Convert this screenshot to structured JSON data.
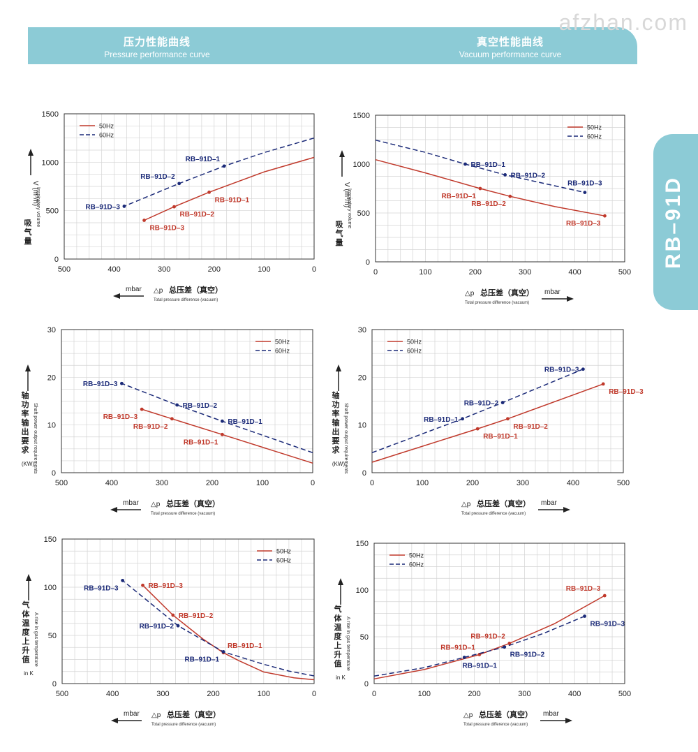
{
  "header": {
    "left": {
      "cn": "压力性能曲线",
      "en": "Pressure performance curve"
    },
    "right": {
      "cn": "真空性能曲线",
      "en": "Vacuum performance curve"
    }
  },
  "watermark": "afzhan.com",
  "side_label": "RB–91D",
  "colors": {
    "c50": "#c0392b",
    "c60": "#1b2a78",
    "grid": "#d4d4d4",
    "accent": "#8ccbd6"
  },
  "xlabel": {
    "mbar": "mbar",
    "dp": "△p",
    "cn": "总压差（真空）",
    "en": "Total pressure difference (vacuum)"
  },
  "ylabels": {
    "volume": {
      "cn": "吸气量",
      "en": "Inspiratory volume",
      "unit": "V (m³/h)"
    },
    "power": {
      "cn": "轴功率输出要求",
      "en": "Shaft power output requirements",
      "unit": "(KW)"
    },
    "temp": {
      "cn": "气体温度上升值",
      "en": "A rise in gas temperature",
      "unit": "in K"
    }
  },
  "chart_data": [
    {
      "id": "pressure-volume",
      "type": "line",
      "title": "Pressure performance curve",
      "xlim": [
        0,
        500
      ],
      "x_reversed": true,
      "xticks": [
        500,
        400,
        300,
        200,
        100,
        0
      ],
      "ylim": [
        0,
        1500
      ],
      "yticks": [
        0,
        500,
        1000,
        1500
      ],
      "legend": {
        "position": "top-left",
        "entries": [
          "50Hz",
          "60Hz"
        ]
      },
      "series": [
        {
          "name": "50Hz",
          "x": [
            0,
            100,
            210,
            280,
            340
          ],
          "y": [
            1050,
            900,
            690,
            540,
            400
          ],
          "markers": [
            {
              "x": 210,
              "y": 690,
              "label": "RB–91D–1",
              "anchor": "below-right"
            },
            {
              "x": 280,
              "y": 540,
              "label": "RB–91D–2",
              "anchor": "below-right"
            },
            {
              "x": 340,
              "y": 400,
              "label": "RB–91D–3",
              "anchor": "below-right"
            }
          ]
        },
        {
          "name": "60Hz",
          "x": [
            0,
            100,
            180,
            270,
            380
          ],
          "y": [
            1250,
            1100,
            960,
            780,
            545
          ],
          "markers": [
            {
              "x": 180,
              "y": 960,
              "label": "RB–91D–1",
              "anchor": "above-left"
            },
            {
              "x": 270,
              "y": 780,
              "label": "RB–91D–2",
              "anchor": "above-left"
            },
            {
              "x": 380,
              "y": 545,
              "label": "RB–91D–3",
              "anchor": "left"
            }
          ]
        }
      ]
    },
    {
      "id": "vacuum-volume",
      "type": "line",
      "title": "Vacuum performance curve",
      "xlim": [
        0,
        500
      ],
      "x_reversed": false,
      "xticks": [
        0,
        100,
        200,
        300,
        400,
        500
      ],
      "ylim": [
        0,
        1500
      ],
      "yticks": [
        0,
        500,
        1000,
        1500
      ],
      "legend": {
        "position": "top-right",
        "entries": [
          "50Hz",
          "60Hz"
        ]
      },
      "series": [
        {
          "name": "50Hz",
          "x": [
            0,
            100,
            210,
            270,
            360,
            460
          ],
          "y": [
            1045,
            910,
            750,
            670,
            565,
            470
          ],
          "markers": [
            {
              "x": 210,
              "y": 750,
              "label": "RB–91D–1",
              "anchor": "below-left"
            },
            {
              "x": 270,
              "y": 670,
              "label": "RB–91D–2",
              "anchor": "below-left"
            },
            {
              "x": 460,
              "y": 470,
              "label": "RB–91D–3",
              "anchor": "below-left"
            }
          ]
        },
        {
          "name": "60Hz",
          "x": [
            0,
            100,
            180,
            260,
            420
          ],
          "y": [
            1245,
            1120,
            1000,
            890,
            710
          ],
          "markers": [
            {
              "x": 180,
              "y": 1000,
              "label": "RB–91D–1",
              "anchor": "right"
            },
            {
              "x": 260,
              "y": 890,
              "label": "RB–91D–2",
              "anchor": "right"
            },
            {
              "x": 420,
              "y": 710,
              "label": "RB–91D–3",
              "anchor": "above"
            }
          ]
        }
      ]
    },
    {
      "id": "pressure-power",
      "type": "line",
      "title": "Pressure performance curve",
      "xlim": [
        0,
        500
      ],
      "x_reversed": true,
      "xticks": [
        500,
        400,
        300,
        200,
        100,
        0
      ],
      "ylim": [
        0,
        30
      ],
      "yticks": [
        0,
        10,
        20,
        30
      ],
      "legend": {
        "position": "top-right",
        "entries": [
          "50Hz",
          "60Hz"
        ]
      },
      "series": [
        {
          "name": "50Hz",
          "x": [
            0,
            180,
            280,
            340
          ],
          "y": [
            2.0,
            8.0,
            11.3,
            13.3
          ],
          "markers": [
            {
              "x": 180,
              "y": 8.0,
              "label": "RB–91D–1",
              "anchor": "below-left"
            },
            {
              "x": 280,
              "y": 11.3,
              "label": "RB–91D–2",
              "anchor": "below-left"
            },
            {
              "x": 340,
              "y": 13.3,
              "label": "RB–91D–3",
              "anchor": "below-left"
            }
          ]
        },
        {
          "name": "60Hz",
          "x": [
            0,
            180,
            270,
            380
          ],
          "y": [
            4.2,
            10.8,
            14.2,
            18.7
          ],
          "markers": [
            {
              "x": 180,
              "y": 10.8,
              "label": "RB–91D–1",
              "anchor": "right"
            },
            {
              "x": 270,
              "y": 14.2,
              "label": "RB–91D–2",
              "anchor": "right"
            },
            {
              "x": 380,
              "y": 18.7,
              "label": "RB–91D–3",
              "anchor": "left"
            }
          ]
        }
      ]
    },
    {
      "id": "vacuum-power",
      "type": "line",
      "title": "Vacuum performance curve",
      "xlim": [
        0,
        500
      ],
      "x_reversed": false,
      "xticks": [
        0,
        100,
        200,
        300,
        400,
        500
      ],
      "ylim": [
        0,
        30
      ],
      "yticks": [
        0,
        10,
        20,
        30
      ],
      "legend": {
        "position": "top-left",
        "entries": [
          "50Hz",
          "60Hz"
        ]
      },
      "series": [
        {
          "name": "50Hz",
          "x": [
            0,
            210,
            270,
            460
          ],
          "y": [
            2.2,
            9.2,
            11.3,
            18.6
          ],
          "markers": [
            {
              "x": 210,
              "y": 9.2,
              "label": "RB–91D–1",
              "anchor": "below-right"
            },
            {
              "x": 270,
              "y": 11.3,
              "label": "RB–91D–2",
              "anchor": "below-right"
            },
            {
              "x": 460,
              "y": 18.6,
              "label": "RB–91D–3",
              "anchor": "below-right"
            }
          ]
        },
        {
          "name": "60Hz",
          "x": [
            0,
            180,
            260,
            420
          ],
          "y": [
            4.2,
            11.3,
            14.7,
            21.7
          ],
          "markers": [
            {
              "x": 180,
              "y": 11.3,
              "label": "RB–91D–1",
              "anchor": "left"
            },
            {
              "x": 260,
              "y": 14.7,
              "label": "RB–91D–2",
              "anchor": "left"
            },
            {
              "x": 420,
              "y": 21.7,
              "label": "RB–91D–3",
              "anchor": "left"
            }
          ]
        }
      ]
    },
    {
      "id": "pressure-temp",
      "type": "line",
      "title": "Pressure performance curve",
      "xlim": [
        0,
        500
      ],
      "x_reversed": true,
      "xticks": [
        500,
        400,
        300,
        200,
        100,
        0
      ],
      "ylim": [
        0,
        150
      ],
      "yticks": [
        0,
        50,
        100,
        150
      ],
      "legend": {
        "position": "top-right",
        "entries": [
          "50Hz",
          "60Hz"
        ]
      },
      "series": [
        {
          "name": "50Hz",
          "x": [
            0,
            40,
            100,
            150,
            180,
            220,
            280,
            340
          ],
          "y": [
            4,
            6,
            12,
            24,
            32,
            46,
            71,
            102
          ],
          "markers": [
            {
              "x": 180,
              "y": 32,
              "label": "RB–91D–1",
              "anchor": "above-right"
            },
            {
              "x": 280,
              "y": 71,
              "label": "RB–91D–2",
              "anchor": "right"
            },
            {
              "x": 340,
              "y": 102,
              "label": "RB–91D–3",
              "anchor": "right"
            }
          ]
        },
        {
          "name": "60Hz",
          "x": [
            0,
            50,
            100,
            180,
            270,
            380
          ],
          "y": [
            8,
            13,
            20,
            33,
            60,
            107
          ],
          "markers": [
            {
              "x": 180,
              "y": 33,
              "label": "RB–91D–1",
              "anchor": "below-left"
            },
            {
              "x": 270,
              "y": 60,
              "label": "RB–91D–2",
              "anchor": "left"
            },
            {
              "x": 380,
              "y": 107,
              "label": "RB–91D–3",
              "anchor": "below-left"
            }
          ]
        }
      ]
    },
    {
      "id": "vacuum-temp",
      "type": "line",
      "title": "Vacuum performance curve",
      "xlim": [
        0,
        500
      ],
      "x_reversed": false,
      "xticks": [
        0,
        100,
        200,
        300,
        400,
        500
      ],
      "ylim": [
        0,
        150
      ],
      "yticks": [
        0,
        50,
        100,
        150
      ],
      "legend": {
        "position": "top-left",
        "entries": [
          "50Hz",
          "60Hz"
        ]
      },
      "series": [
        {
          "name": "50Hz",
          "x": [
            0,
            100,
            210,
            270,
            360,
            460
          ],
          "y": [
            5,
            15,
            31,
            43,
            64,
            94
          ],
          "markers": [
            {
              "x": 210,
              "y": 31,
              "label": "RB–91D–1",
              "anchor": "above-left"
            },
            {
              "x": 270,
              "y": 43,
              "label": "RB–91D–2",
              "anchor": "above-left"
            },
            {
              "x": 460,
              "y": 94,
              "label": "RB–91D–3",
              "anchor": "above-left"
            }
          ]
        },
        {
          "name": "60Hz",
          "x": [
            0,
            100,
            180,
            260,
            340,
            420
          ],
          "y": [
            8,
            17,
            28,
            39,
            54,
            72
          ],
          "markers": [
            {
              "x": 180,
              "y": 28,
              "label": "RB–91D–1",
              "anchor": "below"
            },
            {
              "x": 260,
              "y": 39,
              "label": "RB–91D–2",
              "anchor": "below-right"
            },
            {
              "x": 420,
              "y": 72,
              "label": "RB–91D–3",
              "anchor": "below-right"
            }
          ]
        }
      ]
    }
  ]
}
